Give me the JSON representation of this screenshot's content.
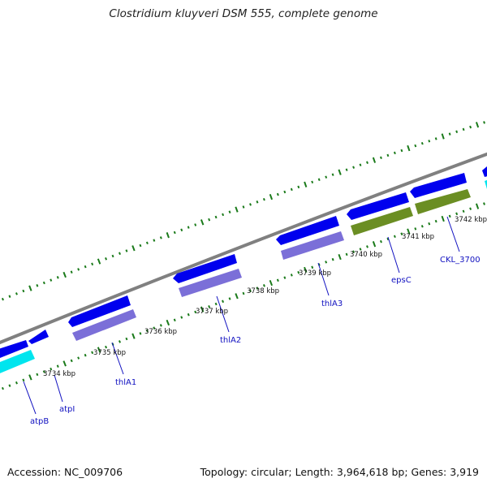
{
  "title": "Clostridium kluyveri DSM 555, complete genome",
  "footer": {
    "accession": "Accession: NC_009706",
    "summary": "Topology: circular; Length: 3,964,618 bp; Genes: 3,919"
  },
  "colors": {
    "backbone": "#808080",
    "gc_ticks": "#1a7a1a",
    "cds_forward": "#0000ee",
    "cds_reverse_light": "#7b6fd8",
    "cds_operon": "#6b8e23",
    "cds_cyan": "#00e5ee",
    "label_line": "#1010c0"
  },
  "kbp_labels": [
    {
      "id": "3734",
      "text": "3734 kbp"
    },
    {
      "id": "3735",
      "text": "3735 kbp"
    },
    {
      "id": "3736",
      "text": "3736 kbp"
    },
    {
      "id": "3737",
      "text": "3737 kbp"
    },
    {
      "id": "3738",
      "text": "3738 kbp"
    },
    {
      "id": "3739",
      "text": "3739 kbp"
    },
    {
      "id": "3740",
      "text": "3740 kbp"
    },
    {
      "id": "3741",
      "text": "3741 kbp"
    },
    {
      "id": "3742",
      "text": "3742 kbp"
    }
  ],
  "gene_labels": [
    {
      "id": "atpB",
      "text": "atpB"
    },
    {
      "id": "atpI",
      "text": "atpI"
    },
    {
      "id": "thlA1",
      "text": "thlA1"
    },
    {
      "id": "thlA2",
      "text": "thlA2"
    },
    {
      "id": "thlA3",
      "text": "thlA3"
    },
    {
      "id": "epsC",
      "text": "epsC"
    },
    {
      "id": "CKL_3700",
      "text": "CKL_3700"
    }
  ]
}
